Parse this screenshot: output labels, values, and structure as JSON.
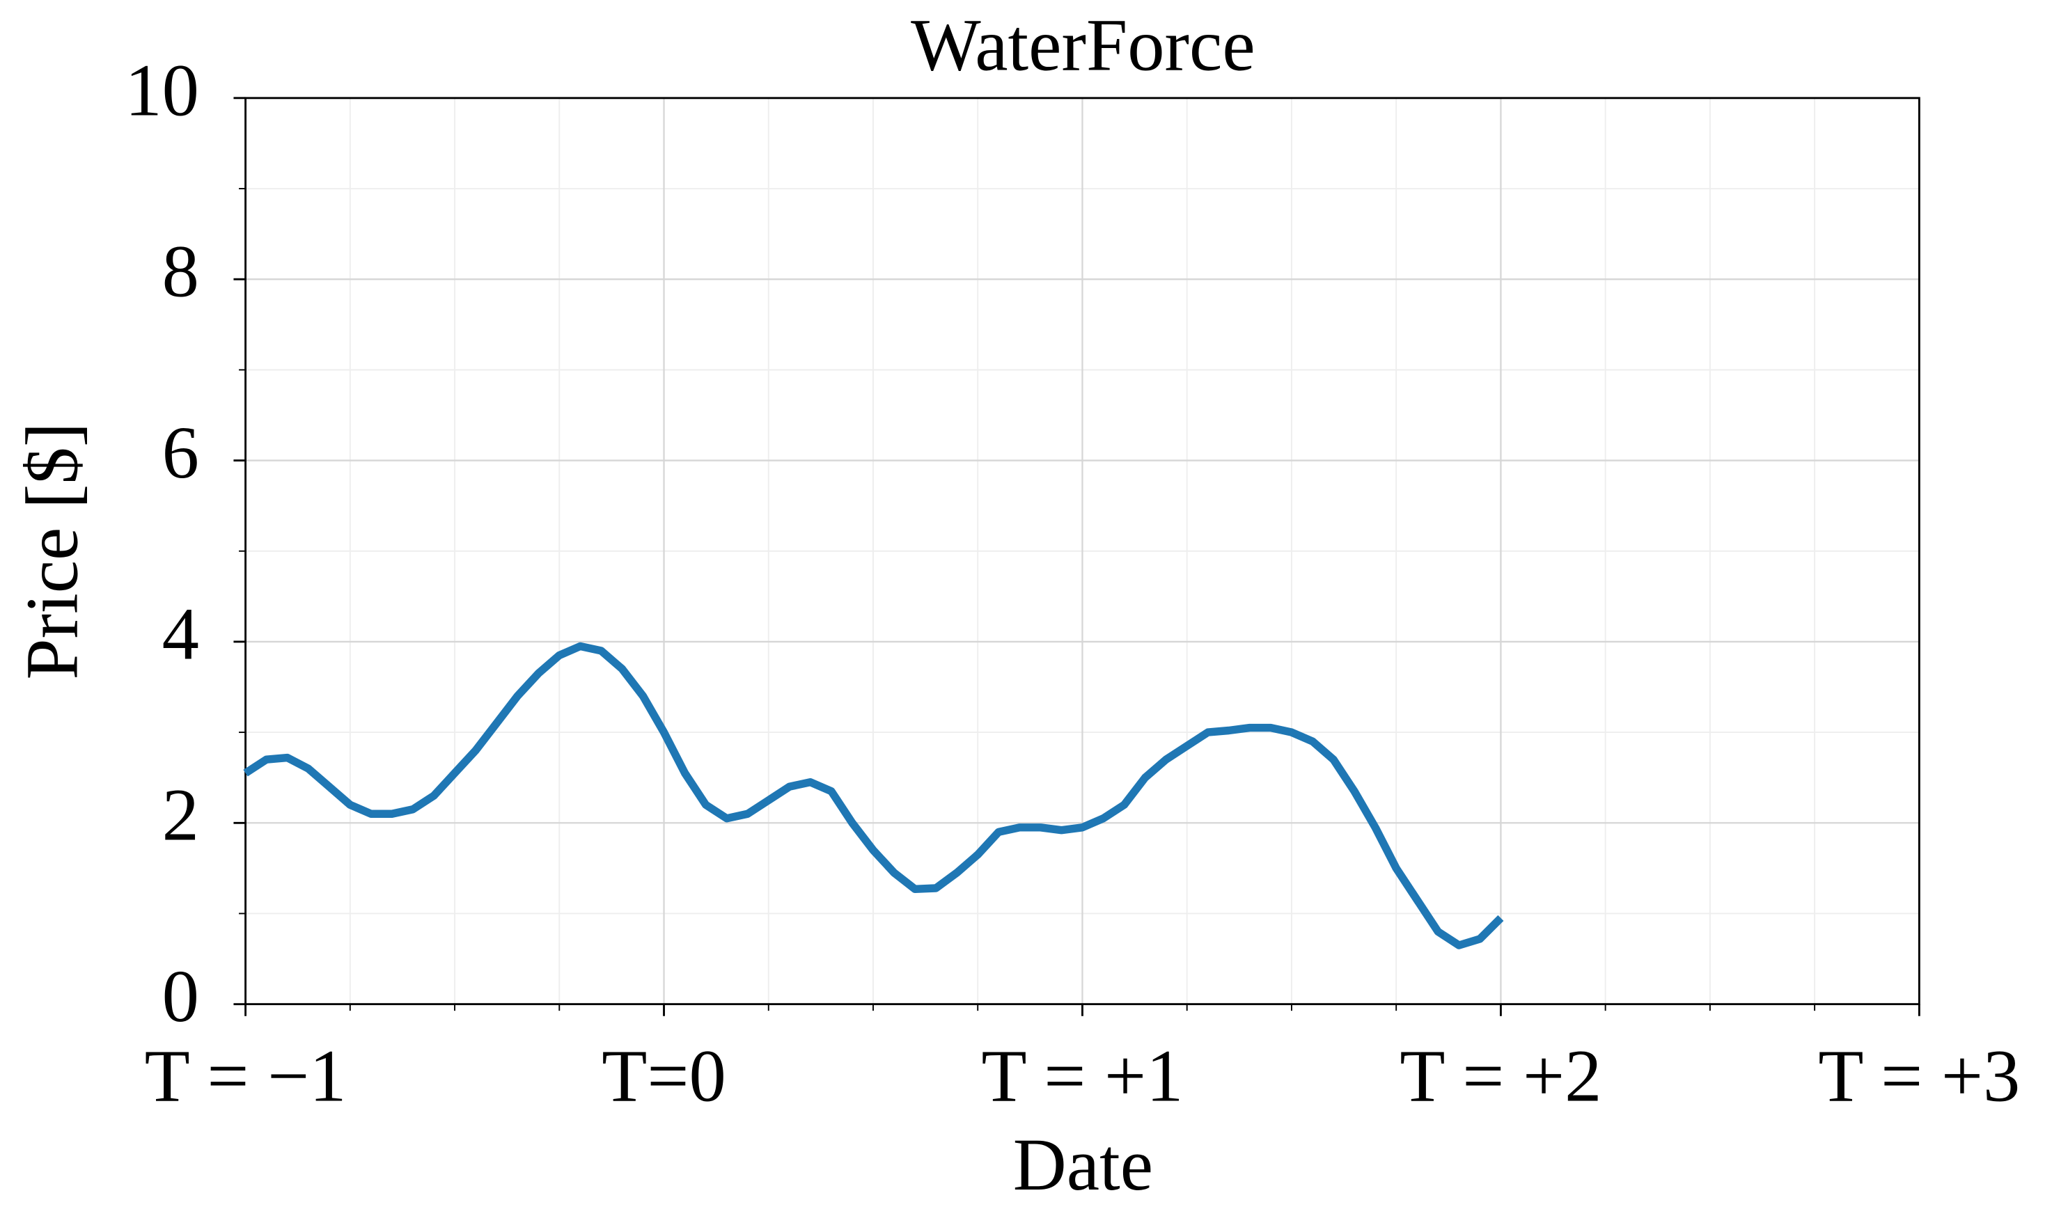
{
  "chart_data": {
    "type": "line",
    "title": "WaterForce",
    "xlabel": "Date",
    "ylabel": "Price [$]",
    "x": [
      -1,
      -0.95,
      -0.9,
      -0.85,
      -0.8,
      -0.75,
      -0.7,
      -0.65,
      -0.6,
      -0.55,
      -0.5,
      -0.45,
      -0.4,
      -0.35,
      -0.3,
      -0.25,
      -0.2,
      -0.15,
      -0.1,
      -0.05,
      0,
      0.05,
      0.1,
      0.15,
      0.2,
      0.25,
      0.3,
      0.35,
      0.4,
      0.45,
      0.5,
      0.55,
      0.6,
      0.65,
      0.7,
      0.75,
      0.8,
      0.85,
      0.9,
      0.95,
      1,
      1.05,
      1.1,
      1.15,
      1.2,
      1.25,
      1.3,
      1.35,
      1.4,
      1.45,
      1.5,
      1.55,
      1.6,
      1.65,
      1.7,
      1.75,
      1.8,
      1.85,
      1.9,
      1.95,
      2
    ],
    "series": [
      {
        "name": "WaterForce",
        "color": "#1f77b4",
        "values": [
          2.55,
          2.7,
          2.72,
          2.6,
          2.4,
          2.2,
          2.1,
          2.1,
          2.15,
          2.3,
          2.55,
          2.8,
          3.1,
          3.4,
          3.65,
          3.85,
          3.95,
          3.9,
          3.7,
          3.4,
          3.0,
          2.55,
          2.2,
          2.05,
          2.1,
          2.25,
          2.4,
          2.45,
          2.35,
          2.0,
          1.7,
          1.45,
          1.27,
          1.28,
          1.45,
          1.65,
          1.9,
          1.95,
          1.95,
          1.92,
          1.95,
          2.05,
          2.2,
          2.5,
          2.7,
          2.85,
          3.0,
          3.02,
          3.05,
          3.05,
          3.0,
          2.9,
          2.7,
          2.35,
          1.95,
          1.5,
          1.15,
          0.8,
          0.65,
          0.72,
          0.95
        ]
      }
    ],
    "xlim": [
      -1,
      3
    ],
    "xticks": [
      {
        "value": -1,
        "label": "T = −1"
      },
      {
        "value": 0,
        "label": "T=0"
      },
      {
        "value": 1,
        "label": "T = +1"
      },
      {
        "value": 2,
        "label": "T = +2"
      },
      {
        "value": 3,
        "label": "T = +3"
      }
    ],
    "ylim": [
      0,
      10
    ],
    "yticks": [
      0,
      2,
      4,
      6,
      8,
      10
    ],
    "grid": true
  }
}
